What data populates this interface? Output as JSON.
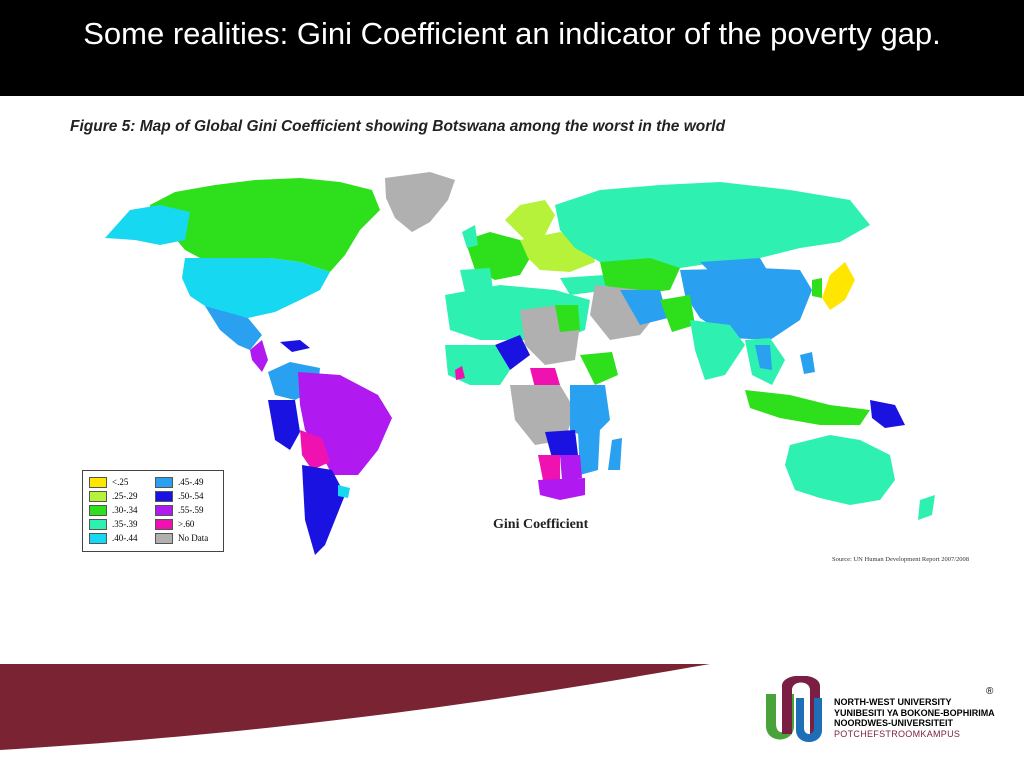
{
  "slide": {
    "title": "Some realities: Gini Coefficient an indicator of the poverty gap."
  },
  "figure": {
    "caption": "Figure 5:  Map of Global Gini Coefficient showing Botswana among the worst in the world",
    "map_title": "Gini Coefficient",
    "source": "Source: UN Human Development Report 2007/2008"
  },
  "legend": {
    "items": [
      {
        "label": "<.25",
        "color": "#ffe600"
      },
      {
        "label": ".25-.29",
        "color": "#b7f23a"
      },
      {
        "label": ".30-.34",
        "color": "#2ee01b"
      },
      {
        "label": ".35-.39",
        "color": "#2ef0b0"
      },
      {
        "label": ".40-.44",
        "color": "#16d8f0"
      },
      {
        "label": ".45-.49",
        "color": "#2aa0f0"
      },
      {
        "label": ".50-.54",
        "color": "#1a12e0"
      },
      {
        "label": ".55-.59",
        "color": "#b019f0"
      },
      {
        "label": ">.60",
        "color": "#f012b0"
      },
      {
        "label": "No Data",
        "color": "#b0b0b0"
      }
    ]
  },
  "colors": {
    "title_bar": "#000000",
    "footer_band": "#7a2332",
    "brand_maroon": "#7a1f43",
    "brand_green": "#4aa33a",
    "brand_blue": "#1e6fb8"
  },
  "university": {
    "line1": "NORTH-WEST UNIVERSITY",
    "line2": "YUNIBESITI YA BOKONE-BOPHIRIMA",
    "line3": "NOORDWES-UNIVERSITEIT",
    "campus": "POTCHEFSTROOMKAMPUS",
    "registered": "®"
  }
}
